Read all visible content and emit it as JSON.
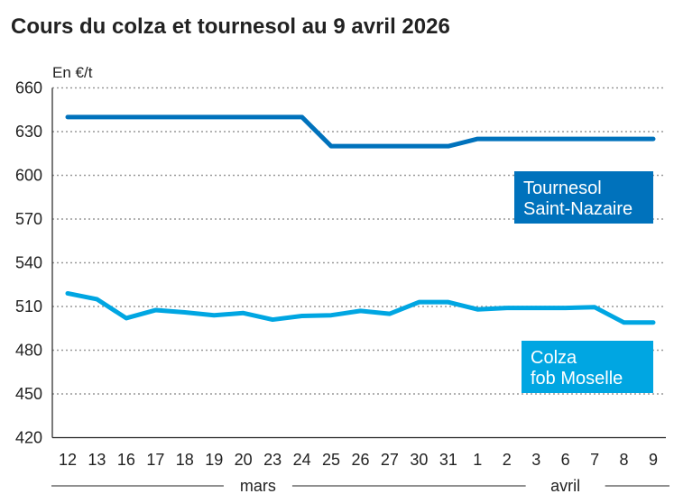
{
  "chart_data": {
    "type": "line",
    "title": "Cours du colza et tournesol au 9 avril 2026",
    "ylabel": "En €/t",
    "ylim": [
      420,
      660
    ],
    "yticks": [
      420,
      450,
      480,
      510,
      540,
      570,
      600,
      630,
      660
    ],
    "grid": true,
    "categories": [
      "12",
      "13",
      "16",
      "17",
      "18",
      "19",
      "20",
      "23",
      "24",
      "25",
      "26",
      "27",
      "30",
      "31",
      "1",
      "2",
      "3",
      "6",
      "7",
      "8",
      "9"
    ],
    "month_groups": [
      {
        "label": "mars",
        "from": 0,
        "to": 13
      },
      {
        "label": "avril",
        "from": 14,
        "to": 20
      }
    ],
    "series": [
      {
        "name": "Tournesol Saint-Nazaire",
        "name_lines": [
          "Tournesol",
          "Saint-Nazaire"
        ],
        "color": "#0072BC",
        "values": [
          640,
          640,
          640,
          640,
          640,
          640,
          640,
          640,
          640,
          620,
          620,
          620,
          620,
          620,
          625,
          625,
          625,
          625,
          625,
          625,
          625
        ]
      },
      {
        "name": "Colza fob Moselle",
        "name_lines": [
          "Colza",
          "fob Moselle"
        ],
        "color": "#00A6E2",
        "values": [
          519,
          515,
          502,
          507.5,
          506,
          504,
          505.5,
          501,
          503.5,
          504,
          507,
          505,
          513,
          513,
          508,
          509,
          509,
          509,
          509.5,
          499,
          499
        ]
      }
    ]
  }
}
